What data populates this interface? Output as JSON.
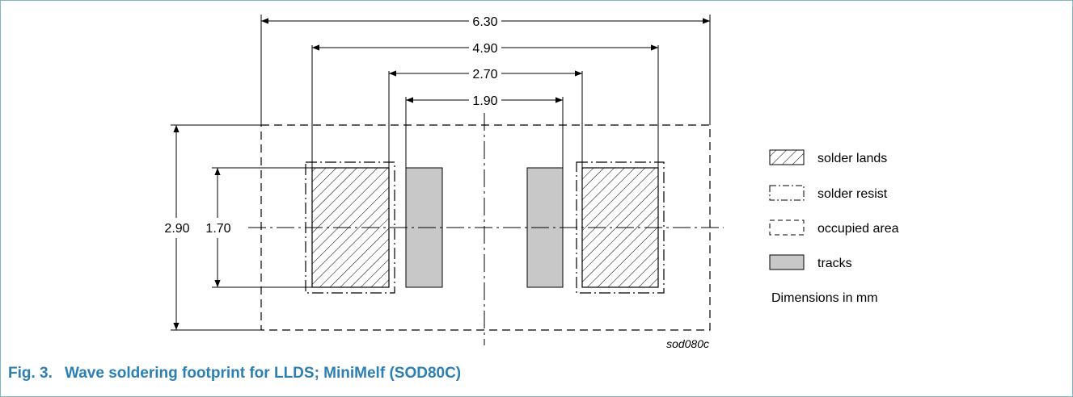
{
  "dimensions": {
    "total_width": "6.30",
    "lands_outer": "4.90",
    "lands_inner": "2.70",
    "tracks_gap": "1.90",
    "height_total": "2.90",
    "height_land": "1.70"
  },
  "legend": {
    "solder_lands": "solder lands",
    "solder_resist": "solder resist",
    "occupied_area": "occupied area",
    "tracks": "tracks",
    "units_note": "Dimensions in mm"
  },
  "drawing_code": "sod080c",
  "caption": {
    "number": "Fig. 3.",
    "title": "Wave soldering footprint for LLDS; MiniMelf (SOD80C)"
  },
  "colors": {
    "caption": "#2b7fb3",
    "frame": "#7fb6c0",
    "track_fill": "#c8c8c8"
  }
}
